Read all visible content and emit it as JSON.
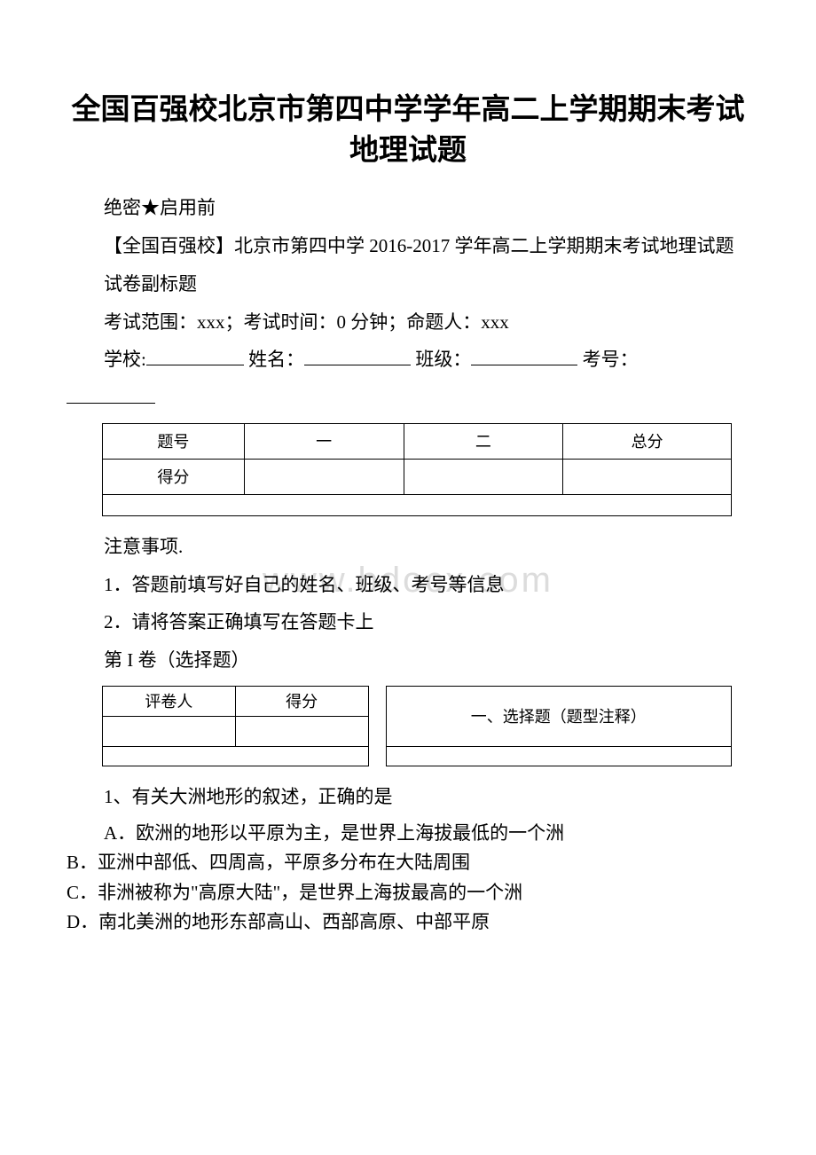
{
  "title": "全国百强校北京市第四中学学年高二上学期期末考试地理试题",
  "confidential": "绝密★启用前",
  "subtitle": "【全国百强校】北京市第四中学 2016-2017 学年高二上学期期末考试地理试题",
  "sub2": "试卷副标题",
  "examinfo": "考试范围：xxx；考试时间：0 分钟；命题人：xxx",
  "fields": {
    "school": "学校:",
    "name": "姓名：",
    "class": "班级：",
    "id": "考号："
  },
  "scoreTable": {
    "headers": [
      "题号",
      "一",
      "二",
      "总分"
    ],
    "row2first": "得分"
  },
  "notes": {
    "heading": "注意事项.",
    "n1": "1．答题前填写好自己的姓名、班级、考号等信息",
    "n2": "2．请将答案正确填写在答题卡上"
  },
  "section1": "第 I 卷（选择题）",
  "graderTable": {
    "h1": "评卷人",
    "h2": "得分",
    "right": "一、选择题（题型注释）"
  },
  "q1": {
    "stem": "1、有关大洲地形的叙述，正确的是",
    "a": "A．欧洲的地形以平原为主，是世界上海拔最低的一个洲",
    "b": "B．亚洲中部低、四周高，平原多分布在大陆周围",
    "c": "C．非洲被称为\"高原大陆\"，是世界上海拔最高的一个洲",
    "d": "D．南北美洲的地形东部高山、西部高原、中部平原"
  },
  "watermark": "www.bdocx.com",
  "colors": {
    "text": "#000000",
    "bg": "#ffffff",
    "watermark": "#dcdcdc",
    "border": "#000000"
  }
}
